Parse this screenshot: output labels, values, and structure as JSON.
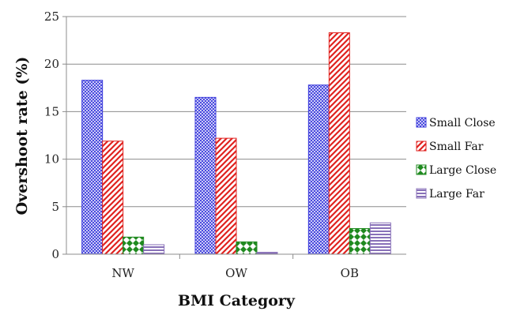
{
  "chart_data": {
    "type": "bar",
    "title": "",
    "xlabel": "BMI Category",
    "ylabel": "Overshoot rate (%)",
    "categories": [
      "NW",
      "OW",
      "OB"
    ],
    "ylim": [
      0,
      25
    ],
    "yticks": [
      0,
      5,
      10,
      15,
      20,
      25
    ],
    "grid": "horizontal major gridlines",
    "legend_position": "right",
    "series": [
      {
        "name": "Small Close",
        "values": [
          18.3,
          16.5,
          17.8
        ],
        "color": "#3b3bdc",
        "pattern": "blue-crosshatch"
      },
      {
        "name": "Small Far",
        "values": [
          11.9,
          12.2,
          23.3
        ],
        "color": "#e0221f",
        "pattern": "red-diagonal-stripes"
      },
      {
        "name": "Large Close",
        "values": [
          1.8,
          1.3,
          2.7
        ],
        "color": "#1f8a1f",
        "pattern": "green-diamond-checker"
      },
      {
        "name": "Large Far",
        "values": [
          1.0,
          0.2,
          3.3
        ],
        "color": "#8870b8",
        "pattern": "purple-horizontal-stripes"
      }
    ]
  }
}
